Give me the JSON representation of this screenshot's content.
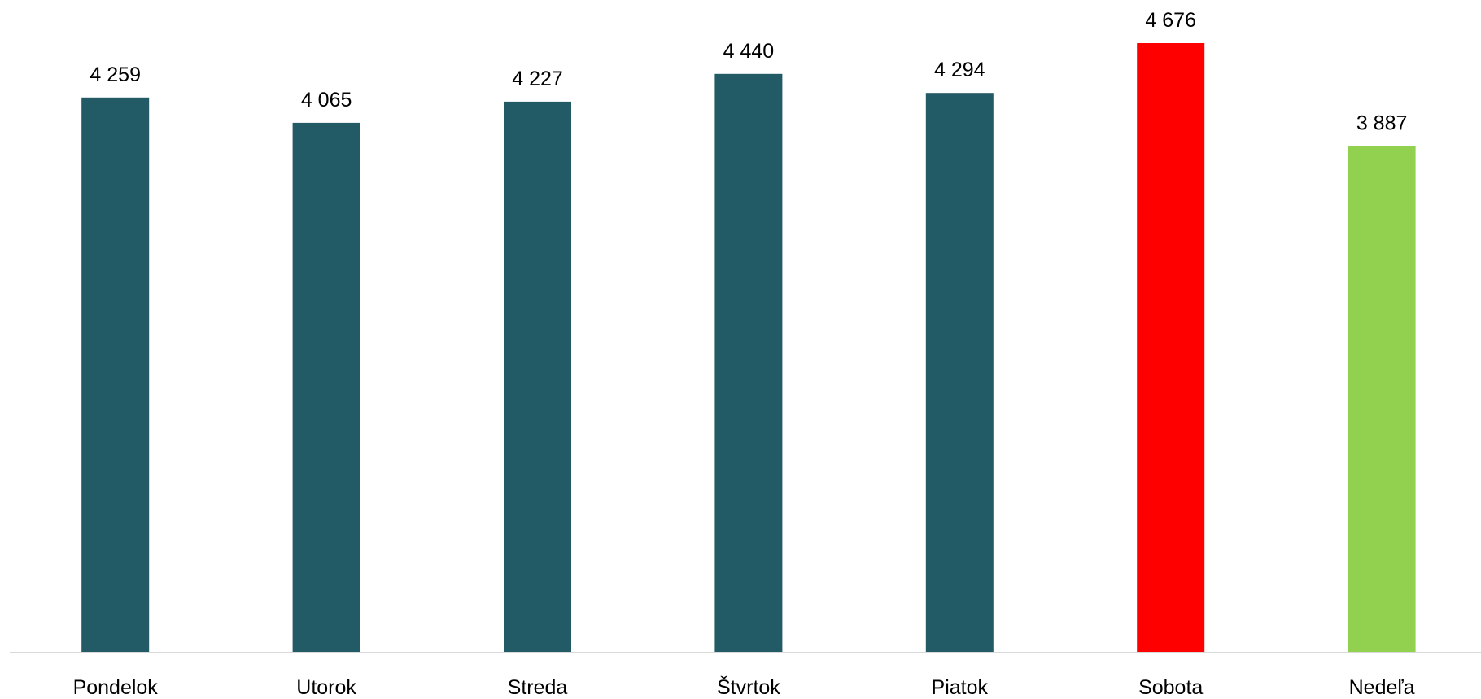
{
  "chart_data": {
    "type": "bar",
    "title": "",
    "xlabel": "",
    "ylabel": "",
    "categories": [
      "Pondelok",
      "Utorok",
      "Streda",
      "Štvrtok",
      "Piatok",
      "Sobota",
      "Nedeľa"
    ],
    "values": [
      4259,
      4065,
      4227,
      4440,
      4294,
      4676,
      3887
    ],
    "value_labels": [
      "4 259",
      "4 065",
      "4 227",
      "4 440",
      "4 294",
      "4 676",
      "3 887"
    ],
    "bar_colors": [
      "#225a66",
      "#225a66",
      "#225a66",
      "#225a66",
      "#225a66",
      "#ff0000",
      "#92d050"
    ],
    "axis_color": "#d9d9d9",
    "ylim": [
      0,
      4676
    ],
    "grid": false,
    "legend": "none"
  }
}
